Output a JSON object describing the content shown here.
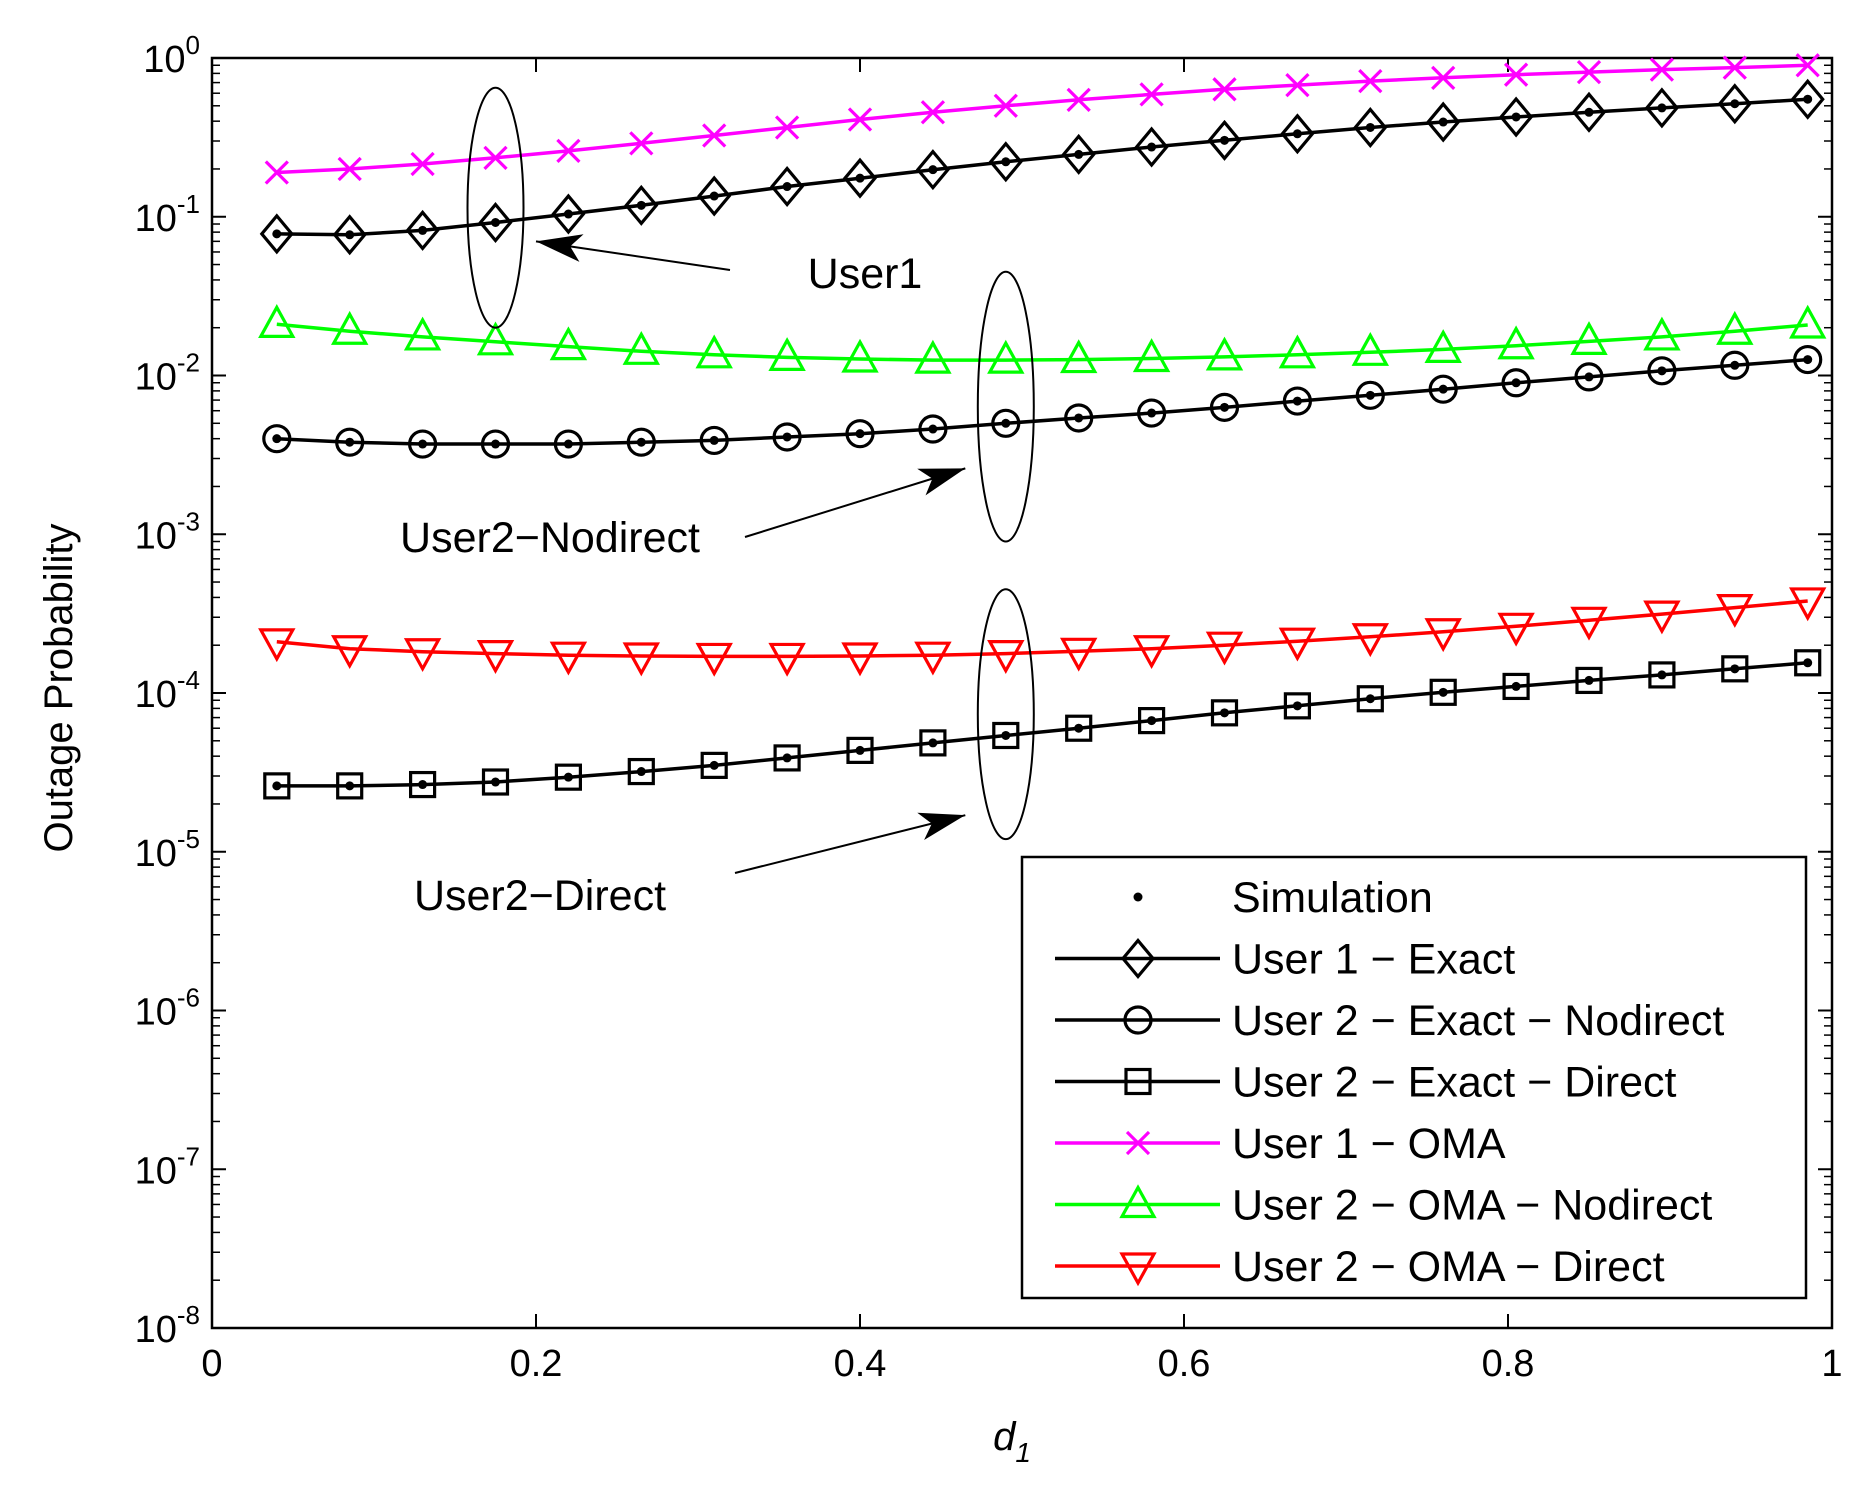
{
  "chart_data": {
    "type": "line",
    "title": "",
    "xlabel": "d",
    "xlabel_sub": "1",
    "ylabel": "Outage Probability",
    "xlim": [
      0,
      1
    ],
    "ylim": [
      1e-08,
      1
    ],
    "yscale": "log",
    "x_ticks": [
      "0",
      "0.2",
      "0.4",
      "0.6",
      "0.8",
      "1"
    ],
    "y_ticks": [
      {
        "base": "10",
        "exp": "0"
      },
      {
        "base": "10",
        "exp": "-1"
      },
      {
        "base": "10",
        "exp": "-2"
      },
      {
        "base": "10",
        "exp": "-3"
      },
      {
        "base": "10",
        "exp": "-4"
      },
      {
        "base": "10",
        "exp": "-5"
      },
      {
        "base": "10",
        "exp": "-6"
      },
      {
        "base": "10",
        "exp": "-7"
      },
      {
        "base": "10",
        "exp": "-8"
      }
    ],
    "x": [
      0.04,
      0.085,
      0.13,
      0.175,
      0.22,
      0.265,
      0.31,
      0.355,
      0.4,
      0.445,
      0.49,
      0.535,
      0.58,
      0.625,
      0.67,
      0.715,
      0.76,
      0.805,
      0.85,
      0.895,
      0.94,
      0.985
    ],
    "series": [
      {
        "name": "User 1 - OMA",
        "color": "#ff00ff",
        "marker": "x",
        "values": [
          0.19,
          0.2,
          0.215,
          0.235,
          0.26,
          0.29,
          0.325,
          0.365,
          0.41,
          0.455,
          0.5,
          0.545,
          0.59,
          0.635,
          0.675,
          0.715,
          0.75,
          0.785,
          0.815,
          0.845,
          0.87,
          0.9
        ]
      },
      {
        "name": "User 1 - Exact",
        "color": "#000000",
        "marker": "diamond",
        "values": [
          0.078,
          0.077,
          0.082,
          0.092,
          0.104,
          0.118,
          0.135,
          0.155,
          0.175,
          0.198,
          0.222,
          0.247,
          0.275,
          0.303,
          0.333,
          0.365,
          0.395,
          0.425,
          0.455,
          0.485,
          0.515,
          0.55
        ]
      },
      {
        "name": "User 2 - OMA - Nodirect",
        "color": "#00ff00",
        "marker": "triangle-up",
        "values": [
          0.021,
          0.019,
          0.0175,
          0.0163,
          0.0152,
          0.0142,
          0.0135,
          0.013,
          0.0127,
          0.0125,
          0.0125,
          0.0126,
          0.0128,
          0.0131,
          0.0135,
          0.014,
          0.0146,
          0.0154,
          0.0164,
          0.0175,
          0.019,
          0.0208
        ]
      },
      {
        "name": "User 2 - Exact - Nodirect",
        "color": "#000000",
        "marker": "circle",
        "values": [
          0.004,
          0.0038,
          0.0037,
          0.0037,
          0.0037,
          0.0038,
          0.0039,
          0.0041,
          0.0043,
          0.0046,
          0.005,
          0.0054,
          0.0058,
          0.0063,
          0.0069,
          0.0075,
          0.0082,
          0.009,
          0.0098,
          0.0107,
          0.0116,
          0.0126
        ]
      },
      {
        "name": "User 2 - OMA - Direct",
        "color": "#ff0000",
        "marker": "triangle-down",
        "values": [
          0.00021,
          0.00019,
          0.000182,
          0.000177,
          0.000173,
          0.000171,
          0.00017,
          0.00017,
          0.000171,
          0.000173,
          0.000177,
          0.000183,
          0.00019,
          0.0002,
          0.000212,
          0.000226,
          0.000243,
          0.000263,
          0.000287,
          0.000314,
          0.000345,
          0.00038
        ]
      },
      {
        "name": "User 2 - Exact - Direct",
        "color": "#000000",
        "marker": "square",
        "values": [
          2.6e-05,
          2.6e-05,
          2.65e-05,
          2.75e-05,
          2.95e-05,
          3.2e-05,
          3.5e-05,
          3.9e-05,
          4.35e-05,
          4.85e-05,
          5.4e-05,
          6e-05,
          6.7e-05,
          7.5e-05,
          8.3e-05,
          9.2e-05,
          0.000101,
          0.00011,
          0.00012,
          0.00013,
          0.000142,
          0.000155
        ]
      }
    ],
    "simulation": {
      "label": "Simulation",
      "series": [
        "User 1 - Exact",
        "User 2 - Exact - Nodirect",
        "User 2 - Exact - Direct"
      ]
    },
    "legend": {
      "position": "bottom-right",
      "entries": [
        {
          "label": "Simulation",
          "series": "Simulation",
          "color": "#000000",
          "marker": "dot",
          "line": false
        },
        {
          "label": "User 1 − Exact",
          "series": "User 1 - Exact",
          "color": "#000000",
          "marker": "diamond",
          "line": true
        },
        {
          "label": "User 2 − Exact − Nodirect",
          "series": "User 2 - Exact - Nodirect",
          "color": "#000000",
          "marker": "circle",
          "line": true
        },
        {
          "label": "User 2 − Exact − Direct",
          "series": "User 2 - Exact - Direct",
          "color": "#000000",
          "marker": "square",
          "line": true
        },
        {
          "label": "User 1 − OMA",
          "series": "User 1 - OMA",
          "color": "#ff00ff",
          "marker": "x",
          "line": true
        },
        {
          "label": "User 2 − OMA − Nodirect",
          "series": "User 2 - OMA - Nodirect",
          "color": "#00ff00",
          "marker": "triangle-up",
          "line": true
        },
        {
          "label": "User 2 − OMA − Direct",
          "series": "User 2 - OMA - Direct",
          "color": "#ff0000",
          "marker": "triangle-down",
          "line": true
        }
      ]
    },
    "annotations": [
      {
        "text": "User1",
        "ellipse_at": {
          "x": 0.175,
          "y_low": 0.02,
          "y_high": 0.65
        },
        "arrow_to": {
          "x": 0.2,
          "y": 0.07
        }
      },
      {
        "text": "User2−Nodirect",
        "ellipse_at": {
          "x": 0.49,
          "y_low": 0.0009,
          "y_high": 0.045
        },
        "arrow_to": {
          "x": 0.465,
          "y": 0.0026
        }
      },
      {
        "text": "User2−Direct",
        "ellipse_at": {
          "x": 0.49,
          "y_low": 1.2e-05,
          "y_high": 0.00045
        },
        "arrow_to": {
          "x": 0.465,
          "y": 1.7e-05
        }
      }
    ]
  }
}
